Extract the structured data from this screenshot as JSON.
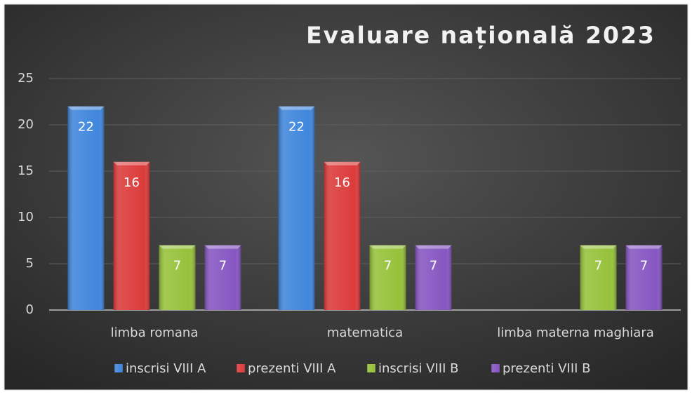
{
  "chart_data": {
    "type": "bar",
    "title": "Evaluare națională 2023",
    "categories": [
      "limba romana",
      "matematica",
      "limba materna maghiara"
    ],
    "series": [
      {
        "name": "inscrisi VIII A",
        "color": "#3f86dc",
        "values": [
          22,
          22,
          null
        ]
      },
      {
        "name": "prezenti VIII A",
        "color": "#dc3b3a",
        "values": [
          16,
          16,
          null
        ]
      },
      {
        "name": "inscrisi VIII B",
        "color": "#96c23a",
        "values": [
          7,
          7,
          7
        ]
      },
      {
        "name": "prezenti VIII B",
        "color": "#8656c2",
        "values": [
          7,
          7,
          7
        ]
      }
    ],
    "ylim": [
      0,
      25
    ],
    "yticks": [
      0,
      5,
      10,
      15,
      20,
      25
    ],
    "grid": true,
    "legend": "bottom"
  }
}
